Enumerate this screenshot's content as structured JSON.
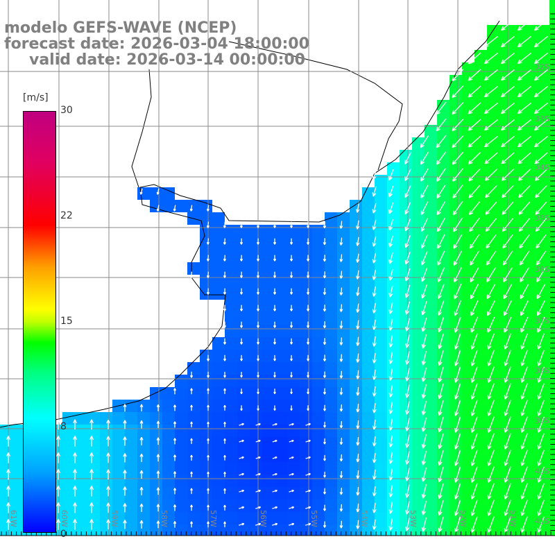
{
  "title": {
    "model": "modelo GEFS-WAVE (NCEP)",
    "forecast": "forecast date: 2026-03-04 18:00:00",
    "valid": "valid date: 2026-03-14 00:00:00"
  },
  "colorbar": {
    "unit": "[m/s]",
    "labels": [
      "30",
      "22",
      "15",
      "8",
      "0"
    ],
    "colors": [
      "#0000ff",
      "#00ffff",
      "#00ff00",
      "#ffff00",
      "#ff0000",
      "#c00080"
    ]
  },
  "axes": {
    "lon_labels": [
      "61W",
      "60W",
      "59W",
      "58W",
      "57W",
      "56W",
      "55W",
      "54W",
      "53W",
      "52W",
      "51W"
    ],
    "lat_labels": [
      "32S",
      "33S",
      "34S",
      "35S",
      "36S",
      "37S",
      "38S",
      "39S",
      "40S",
      "41S"
    ]
  }
}
